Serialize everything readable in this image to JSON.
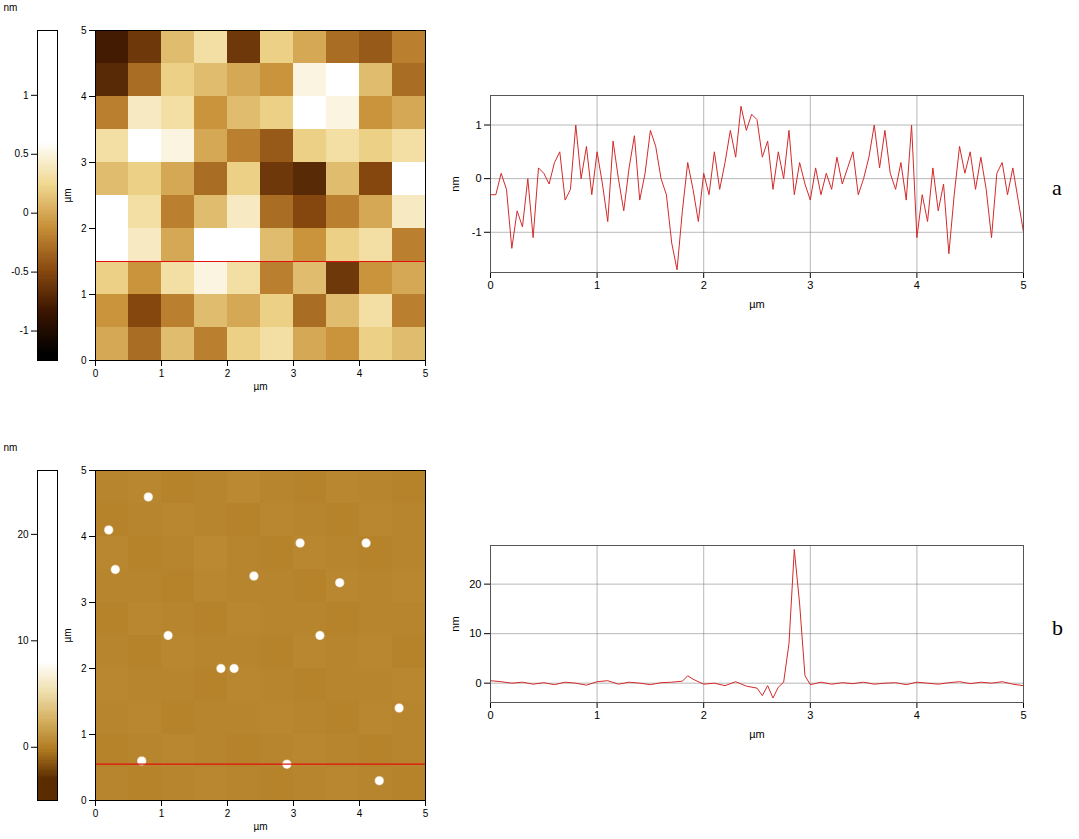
{
  "chart_data": [
    {
      "type": "heatmap",
      "xlabel": "µm",
      "ylabel": "µm",
      "xlim": [
        0,
        5
      ],
      "ylim": [
        0,
        5
      ],
      "xticks": [
        0,
        1,
        2,
        3,
        4,
        5
      ],
      "yticks": [
        0,
        1,
        2,
        3,
        4,
        5
      ],
      "profile_y": 1.5,
      "colors": [
        "#000000",
        "#3a1500",
        "#8a4a10",
        "#c89038",
        "#f0d890",
        "#ffffff"
      ],
      "colorbar": {
        "title": "nm",
        "range": [
          -1.25,
          1.55
        ],
        "ticks": [
          -1,
          -0.5,
          0,
          0.5,
          1
        ],
        "color_domain": [
          -1.2,
          0.6
        ]
      },
      "cells": [
        [
          -0.8,
          -0.6,
          0.1,
          0.3,
          -0.6,
          0.2,
          0.0,
          -0.3,
          -0.4,
          -0.2
        ],
        [
          -0.7,
          -0.3,
          0.2,
          0.1,
          0.0,
          -0.1,
          0.5,
          0.6,
          0.1,
          -0.3
        ],
        [
          -0.2,
          0.4,
          0.3,
          -0.1,
          0.1,
          0.2,
          0.7,
          0.5,
          -0.1,
          0.0
        ],
        [
          0.3,
          0.6,
          0.5,
          0.0,
          -0.2,
          -0.4,
          0.2,
          0.3,
          0.2,
          0.3
        ],
        [
          0.1,
          0.2,
          0.0,
          -0.3,
          0.2,
          -0.6,
          -0.7,
          0.1,
          -0.5,
          0.6
        ],
        [
          0.7,
          0.3,
          -0.2,
          0.1,
          0.4,
          -0.3,
          -0.5,
          -0.2,
          0.0,
          0.4
        ],
        [
          0.8,
          0.4,
          0.0,
          0.6,
          0.7,
          0.1,
          -0.1,
          0.2,
          0.3,
          -0.2
        ],
        [
          0.2,
          -0.1,
          0.3,
          0.5,
          0.3,
          -0.2,
          0.1,
          -0.6,
          -0.1,
          0.0
        ],
        [
          -0.1,
          -0.5,
          -0.2,
          0.1,
          0.0,
          0.2,
          -0.3,
          0.1,
          0.3,
          -0.2
        ],
        [
          0.0,
          -0.3,
          0.1,
          -0.2,
          0.2,
          0.3,
          0.0,
          -0.1,
          0.2,
          0.1
        ]
      ]
    },
    {
      "type": "line",
      "panel": "a",
      "xlabel": "µm",
      "ylabel": "nm",
      "xlim": [
        0,
        5
      ],
      "ylim": [
        -1.75,
        1.55
      ],
      "xticks": [
        0,
        1,
        2,
        3,
        4,
        5
      ],
      "yticks": [
        -1,
        0,
        1
      ],
      "grid": true,
      "color": "#d42a2a",
      "x": [
        0,
        0.05,
        0.1,
        0.15,
        0.2,
        0.25,
        0.3,
        0.35,
        0.4,
        0.45,
        0.5,
        0.55,
        0.6,
        0.65,
        0.7,
        0.75,
        0.8,
        0.85,
        0.9,
        0.95,
        1.0,
        1.05,
        1.1,
        1.15,
        1.2,
        1.25,
        1.3,
        1.35,
        1.4,
        1.45,
        1.5,
        1.55,
        1.6,
        1.65,
        1.7,
        1.75,
        1.8,
        1.85,
        1.9,
        1.95,
        2.0,
        2.05,
        2.1,
        2.15,
        2.2,
        2.25,
        2.3,
        2.35,
        2.4,
        2.45,
        2.5,
        2.55,
        2.6,
        2.65,
        2.7,
        2.75,
        2.8,
        2.85,
        2.9,
        2.95,
        3.0,
        3.05,
        3.1,
        3.15,
        3.2,
        3.25,
        3.3,
        3.35,
        3.4,
        3.45,
        3.5,
        3.55,
        3.6,
        3.65,
        3.7,
        3.75,
        3.8,
        3.85,
        3.9,
        3.95,
        4.0,
        4.05,
        4.1,
        4.15,
        4.2,
        4.25,
        4.3,
        4.35,
        4.4,
        4.45,
        4.5,
        4.55,
        4.6,
        4.65,
        4.7,
        4.75,
        4.8,
        4.85,
        4.9,
        4.95,
        5.0
      ],
      "values": [
        -0.3,
        -0.3,
        0.1,
        -0.2,
        -1.3,
        -0.6,
        -0.9,
        0.0,
        -1.1,
        0.2,
        0.1,
        -0.1,
        0.3,
        0.5,
        -0.4,
        -0.2,
        1.0,
        0.0,
        0.6,
        -0.3,
        0.5,
        -0.1,
        -0.8,
        0.7,
        0.0,
        -0.6,
        0.2,
        0.8,
        -0.4,
        0.1,
        0.9,
        0.6,
        0.0,
        -0.3,
        -1.2,
        -1.7,
        -0.6,
        0.3,
        -0.2,
        -0.8,
        0.1,
        -0.3,
        0.5,
        -0.2,
        0.3,
        0.9,
        0.4,
        1.35,
        0.9,
        1.2,
        1.1,
        0.4,
        0.7,
        -0.2,
        0.5,
        0.0,
        0.9,
        -0.3,
        0.3,
        -0.1,
        -0.4,
        0.2,
        -0.3,
        0.1,
        -0.2,
        0.4,
        -0.1,
        0.2,
        0.5,
        -0.3,
        0.0,
        0.4,
        1.0,
        0.2,
        0.9,
        0.1,
        -0.2,
        0.3,
        -0.4,
        1.0,
        -1.1,
        -0.3,
        -0.8,
        0.2,
        -0.6,
        -0.1,
        -1.4,
        -0.3,
        0.6,
        0.1,
        0.5,
        -0.2,
        0.4,
        -0.2,
        -1.1,
        0.1,
        0.3,
        -0.3,
        0.2,
        -0.4,
        -1.0
      ]
    },
    {
      "type": "heatmap",
      "xlabel": "µm",
      "ylabel": "µm",
      "xlim": [
        0,
        5
      ],
      "ylim": [
        0,
        5
      ],
      "xticks": [
        0,
        1,
        2,
        3,
        4,
        5
      ],
      "yticks": [
        0,
        1,
        2,
        3,
        4,
        5
      ],
      "profile_y": 0.55,
      "colors": [
        "#5a2c00",
        "#b07a20",
        "#d4b060",
        "#f0e0b0",
        "#ffffff"
      ],
      "colorbar": {
        "title": "nm",
        "range": [
          -5,
          26
        ],
        "ticks": [
          0,
          10,
          20
        ],
        "color_domain": [
          -3,
          8
        ]
      },
      "cells": [
        [
          0.3,
          0.4,
          0.2,
          0.3,
          0.5,
          0.3,
          0.2,
          0.4,
          0.3,
          0.2
        ],
        [
          0.2,
          0.3,
          0.4,
          0.3,
          0.2,
          0.4,
          0.3,
          0.2,
          0.4,
          0.3
        ],
        [
          0.4,
          0.2,
          0.3,
          0.5,
          0.3,
          0.2,
          0.4,
          0.3,
          0.2,
          0.3
        ],
        [
          0.3,
          0.3,
          0.2,
          0.4,
          0.3,
          0.3,
          0.2,
          0.4,
          0.3,
          0.4
        ],
        [
          0.2,
          0.4,
          0.3,
          0.2,
          0.4,
          0.3,
          0.3,
          0.2,
          0.3,
          0.3
        ],
        [
          0.3,
          0.2,
          0.4,
          0.3,
          0.3,
          0.2,
          0.4,
          0.3,
          0.4,
          0.2
        ],
        [
          0.4,
          0.3,
          0.3,
          0.2,
          0.4,
          0.3,
          0.2,
          0.3,
          0.3,
          0.4
        ],
        [
          0.3,
          0.4,
          0.2,
          0.3,
          0.3,
          0.4,
          0.3,
          0.2,
          0.4,
          0.3
        ],
        [
          0.2,
          0.3,
          0.4,
          0.3,
          0.2,
          0.3,
          0.4,
          0.3,
          0.2,
          0.3
        ],
        [
          0.3,
          0.2,
          0.3,
          0.4,
          0.3,
          0.2,
          0.3,
          0.4,
          0.3,
          0.2
        ]
      ],
      "particles": {
        "x": [
          0.7,
          2.9,
          4.3,
          3.4,
          2.1,
          1.1,
          2.4,
          0.3,
          0.8,
          1.9,
          4.1,
          3.1,
          3.7,
          0.2,
          4.6
        ],
        "y": [
          0.6,
          0.55,
          0.3,
          2.5,
          2.0,
          2.5,
          3.4,
          3.5,
          4.6,
          2.0,
          3.9,
          3.9,
          3.3,
          4.1,
          1.4
        ],
        "values": [
          20,
          27,
          15,
          12,
          10,
          9,
          10,
          8,
          9,
          8,
          8,
          8,
          9,
          8,
          9
        ]
      }
    },
    {
      "type": "line",
      "panel": "b",
      "xlabel": "µm",
      "ylabel": "nm",
      "xlim": [
        0,
        5
      ],
      "ylim": [
        -3.9,
        27.8
      ],
      "xticks": [
        0,
        1,
        2,
        3,
        4,
        5
      ],
      "yticks": [
        0,
        10,
        20
      ],
      "grid": true,
      "color": "#d42a2a",
      "x": [
        0,
        0.1,
        0.2,
        0.3,
        0.4,
        0.5,
        0.6,
        0.7,
        0.8,
        0.9,
        1.0,
        1.1,
        1.2,
        1.3,
        1.4,
        1.5,
        1.6,
        1.7,
        1.8,
        1.85,
        1.9,
        2.0,
        2.1,
        2.2,
        2.3,
        2.4,
        2.5,
        2.55,
        2.6,
        2.65,
        2.7,
        2.75,
        2.8,
        2.85,
        2.9,
        2.95,
        3.0,
        3.1,
        3.2,
        3.3,
        3.4,
        3.5,
        3.6,
        3.7,
        3.8,
        3.9,
        4.0,
        4.1,
        4.2,
        4.3,
        4.4,
        4.5,
        4.6,
        4.7,
        4.8,
        4.9,
        5.0
      ],
      "values": [
        0.5,
        0.3,
        0,
        0.2,
        -0.2,
        0.1,
        -0.3,
        0.2,
        0,
        -0.4,
        0.3,
        0.5,
        -0.2,
        0.2,
        0,
        -0.3,
        0.1,
        0.2,
        0.4,
        1.5,
        0.8,
        -0.2,
        0,
        -0.5,
        0.3,
        -0.6,
        -1.0,
        -2.5,
        -0.5,
        -3.0,
        -0.8,
        0.2,
        8,
        27,
        16,
        1.5,
        -0.3,
        0.2,
        -0.2,
        0.1,
        -0.1,
        0.2,
        -0.2,
        0,
        0.1,
        -0.3,
        0.2,
        0,
        -0.2,
        0.1,
        0.3,
        -0.1,
        0.2,
        0,
        0.3,
        -0.2,
        -0.5
      ]
    }
  ]
}
